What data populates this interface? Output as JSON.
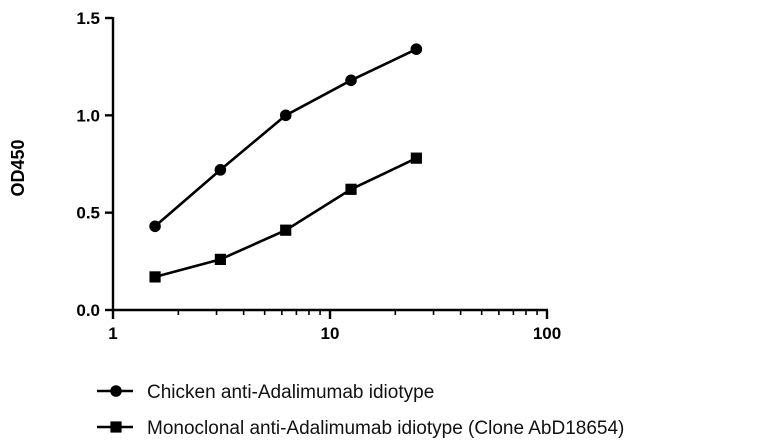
{
  "chart_data": {
    "type": "line",
    "xscale": "log",
    "xlim": [
      1,
      100
    ],
    "ylim": [
      0,
      1.5
    ],
    "xticks": [
      {
        "value": 1,
        "label": "1"
      },
      {
        "value": 10,
        "label": "10"
      },
      {
        "value": 100,
        "label": "100"
      }
    ],
    "yticks": [
      {
        "value": 0.0,
        "label": "0.0"
      },
      {
        "value": 0.5,
        "label": "0.5"
      },
      {
        "value": 1.0,
        "label": "1.0"
      },
      {
        "value": 1.5,
        "label": "1.5"
      }
    ],
    "xlabel": "",
    "ylabel": "OD450",
    "grid": false,
    "legend_position": "bottom",
    "series": [
      {
        "name": "Chicken anti-Adalimumab idiotype",
        "marker": "circle",
        "color": "#000000",
        "x": [
          1.5625,
          3.125,
          6.25,
          12.5,
          25
        ],
        "y": [
          0.43,
          0.72,
          1.0,
          1.18,
          1.34
        ]
      },
      {
        "name": "Monoclonal anti-Adalimumab idiotype (Clone AbD18654)",
        "marker": "square",
        "color": "#000000",
        "x": [
          1.5625,
          3.125,
          6.25,
          12.5,
          25
        ],
        "y": [
          0.17,
          0.26,
          0.41,
          0.62,
          0.78
        ]
      }
    ]
  }
}
